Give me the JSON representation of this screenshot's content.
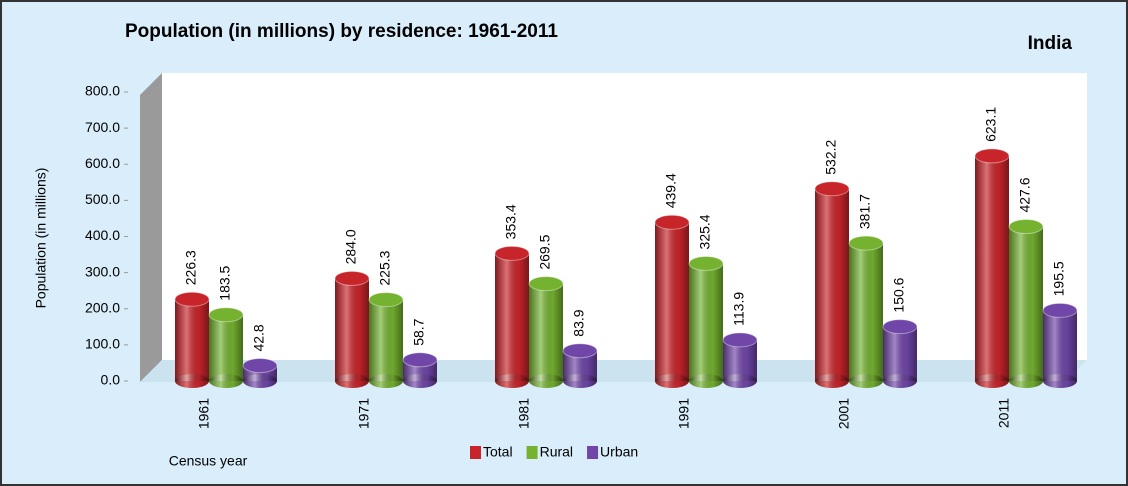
{
  "chart_data": {
    "type": "bar",
    "title": "Population (in millions) by residence: 1961-2011",
    "annotation": "India",
    "y_label": "Population (in millions)",
    "x_label": "Census year",
    "categories": [
      "1961",
      "1971",
      "1981",
      "1991",
      "2001",
      "2011"
    ],
    "series": [
      {
        "name": "Total",
        "color": "#c8252b",
        "values": [
          226.3,
          284.0,
          353.4,
          439.4,
          532.2,
          623.1
        ],
        "value_labels": [
          "226.3",
          "284.0",
          "353.4",
          "439.4",
          "532.2",
          "623.1"
        ]
      },
      {
        "name": "Rural",
        "color": "#74b230",
        "values": [
          183.5,
          225.3,
          269.5,
          325.4,
          381.7,
          427.6
        ],
        "value_labels": [
          "183.5",
          "225.3",
          "269.5",
          "325.4",
          "381.7",
          "427.6"
        ]
      },
      {
        "name": "Urban",
        "color": "#7046a8",
        "values": [
          42.8,
          58.7,
          83.9,
          113.9,
          150.6,
          195.5
        ],
        "value_labels": [
          "42.8",
          "58.7",
          "83.9",
          "113.9",
          "150.6",
          "195.5"
        ]
      }
    ],
    "ylim": [
      0,
      800
    ],
    "yticks": [
      {
        "value": 0,
        "label": "0.0"
      },
      {
        "value": 100,
        "label": "100.0"
      },
      {
        "value": 200,
        "label": "200.0"
      },
      {
        "value": 300,
        "label": "300.0"
      },
      {
        "value": 400,
        "label": "400.0"
      },
      {
        "value": 500,
        "label": "500.0"
      },
      {
        "value": 600,
        "label": "600.0"
      },
      {
        "value": 700,
        "label": "700.0"
      },
      {
        "value": 800,
        "label": "800.0"
      }
    ]
  }
}
